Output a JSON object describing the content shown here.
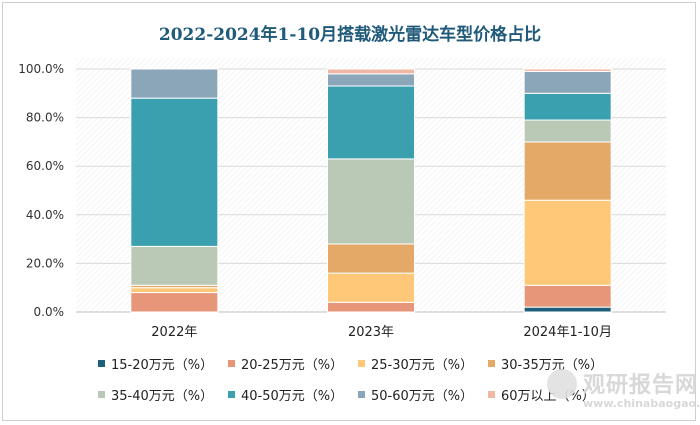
{
  "chart_data": {
    "type": "bar",
    "stacked": true,
    "title": "2022-2024年1-10月搭载激光雷达车型价格占比",
    "categories": [
      "2022年",
      "2023年",
      "2024年1-10月"
    ],
    "ylim": [
      0,
      100
    ],
    "yticks": [
      "0.0%",
      "20.0%",
      "40.0%",
      "60.0%",
      "80.0%",
      "100.0%"
    ],
    "grid": true,
    "legend_position": "bottom",
    "series": [
      {
        "name": "15-20万元（%）",
        "color": "#1f5f7a",
        "values": [
          0,
          0,
          2
        ]
      },
      {
        "name": "20-25万元（%）",
        "color": "#e8967a",
        "values": [
          8,
          4,
          9
        ]
      },
      {
        "name": "25-30万元（%）",
        "color": "#ffc878",
        "values": [
          2,
          12,
          35
        ]
      },
      {
        "name": "30-35万元（%）",
        "color": "#e4a966",
        "values": [
          1,
          12,
          24
        ]
      },
      {
        "name": "35-40万元（%）",
        "color": "#bac9b6",
        "values": [
          16,
          35,
          9
        ]
      },
      {
        "name": "40-50万元（%）",
        "color": "#3a9fae",
        "values": [
          61,
          30,
          11
        ]
      },
      {
        "name": "50-60万元（%）",
        "color": "#8aa6b8",
        "values": [
          12,
          5,
          9
        ]
      },
      {
        "name": "60万以上（%）",
        "color": "#f0b8a4",
        "values": [
          0,
          2,
          1
        ]
      }
    ]
  },
  "watermark": {
    "text": "观研报告网",
    "url": "www.chinabaogao.com"
  }
}
